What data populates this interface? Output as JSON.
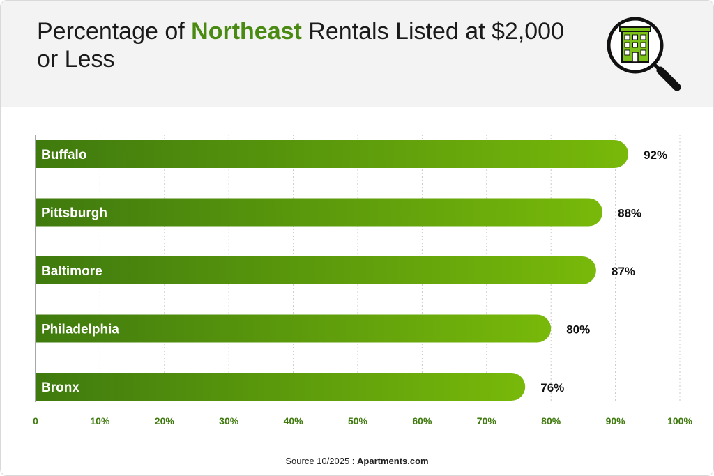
{
  "title": {
    "part1": "Percentage of ",
    "highlight": "Northeast",
    "part2": " Rentals Listed at $2,000 or Less"
  },
  "source": {
    "label": "Source 10/2025 : ",
    "name": "Apartments.com"
  },
  "colors": {
    "bar_start": "#3f7a0e",
    "bar_end": "#78b90a",
    "accent": "#4a8a12",
    "tick_text": "#3f7a0e"
  },
  "icon": "building-magnifier-icon",
  "chart_data": {
    "type": "bar",
    "orientation": "horizontal",
    "categories": [
      "Buffalo",
      "Pittsburgh",
      "Baltimore",
      "Philadelphia",
      "Bronx"
    ],
    "values": [
      92,
      88,
      87,
      80,
      76
    ],
    "value_labels": [
      "92%",
      "88%",
      "87%",
      "80%",
      "76%"
    ],
    "xlim": [
      0,
      100
    ],
    "xticks": [
      "0",
      "10%",
      "20%",
      "30%",
      "40%",
      "50%",
      "60%",
      "70%",
      "80%",
      "90%",
      "100%"
    ],
    "grid": "vertical dotted",
    "title": "Percentage of Northeast Rentals Listed at $2,000 or Less"
  }
}
